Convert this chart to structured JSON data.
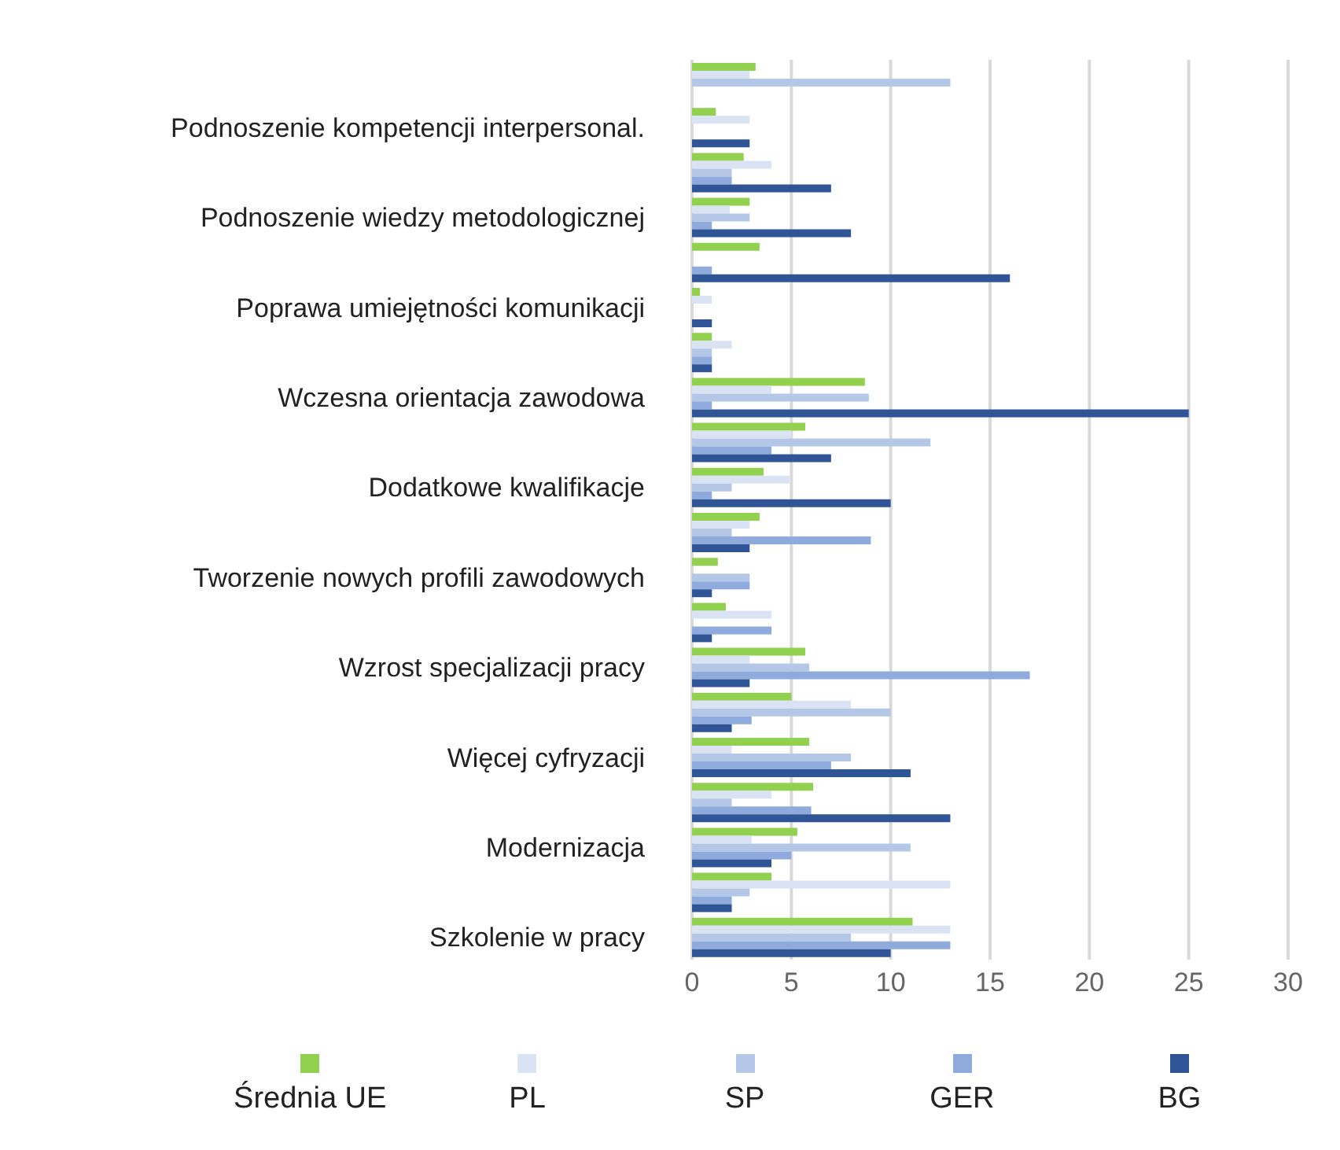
{
  "chart_data": {
    "type": "bar",
    "orientation": "horizontal",
    "categories": [
      null,
      "Podnoszenie kompetencji interpersonal.",
      null,
      "Podnoszenie wiedzy metodologicznej",
      null,
      "Poprawa umiejętności komunikacji",
      null,
      "Wczesna orientacja zawodowa",
      null,
      "Dodatkowe kwalifikacje",
      null,
      "Tworzenie nowych profili zawodowych",
      null,
      "Wzrost specjalizacji pracy",
      null,
      "Więcej cyfryzacji",
      null,
      "Modernizacja",
      null,
      "Szkolenie w pracy"
    ],
    "series": [
      {
        "name": "Średnia UE",
        "color": "#92d050",
        "values": [
          3.2,
          1.2,
          2.6,
          2.9,
          3.4,
          0.4,
          1,
          8.7,
          5.7,
          3.6,
          3.4,
          1.3,
          1.7,
          5.7,
          5,
          5.9,
          6.1,
          5.3,
          4,
          11.1
        ]
      },
      {
        "name": "PL",
        "color": "#dae3f3",
        "values": [
          2.9,
          2.9,
          4,
          1.9,
          0,
          1,
          2,
          4,
          5,
          4.9,
          2.9,
          0,
          4,
          2.9,
          8,
          2,
          4,
          3,
          13,
          13
        ]
      },
      {
        "name": "SP",
        "color": "#b4c7e7",
        "values": [
          13,
          0,
          2,
          2.9,
          0,
          0,
          1,
          8.9,
          12,
          2,
          2,
          2.9,
          0,
          5.9,
          10,
          8,
          2,
          11,
          2.9,
          8
        ]
      },
      {
        "name": "GER",
        "color": "#8faadc",
        "values": [
          0,
          0,
          2,
          1,
          1,
          0,
          1,
          1,
          4,
          1,
          9,
          2.9,
          4,
          17,
          3,
          7,
          6,
          5,
          2,
          13
        ]
      },
      {
        "name": "BG",
        "color": "#2f5597",
        "values": [
          0,
          2.9,
          7,
          8,
          16,
          1,
          1,
          25,
          7,
          10,
          2.9,
          1,
          1,
          2.9,
          2,
          11,
          13,
          4,
          2,
          10
        ]
      }
    ],
    "xlim": [
      0,
      30
    ],
    "xticks": [
      0,
      5,
      10,
      15,
      20,
      25,
      30
    ],
    "grid": "x",
    "legend": "bottom"
  }
}
